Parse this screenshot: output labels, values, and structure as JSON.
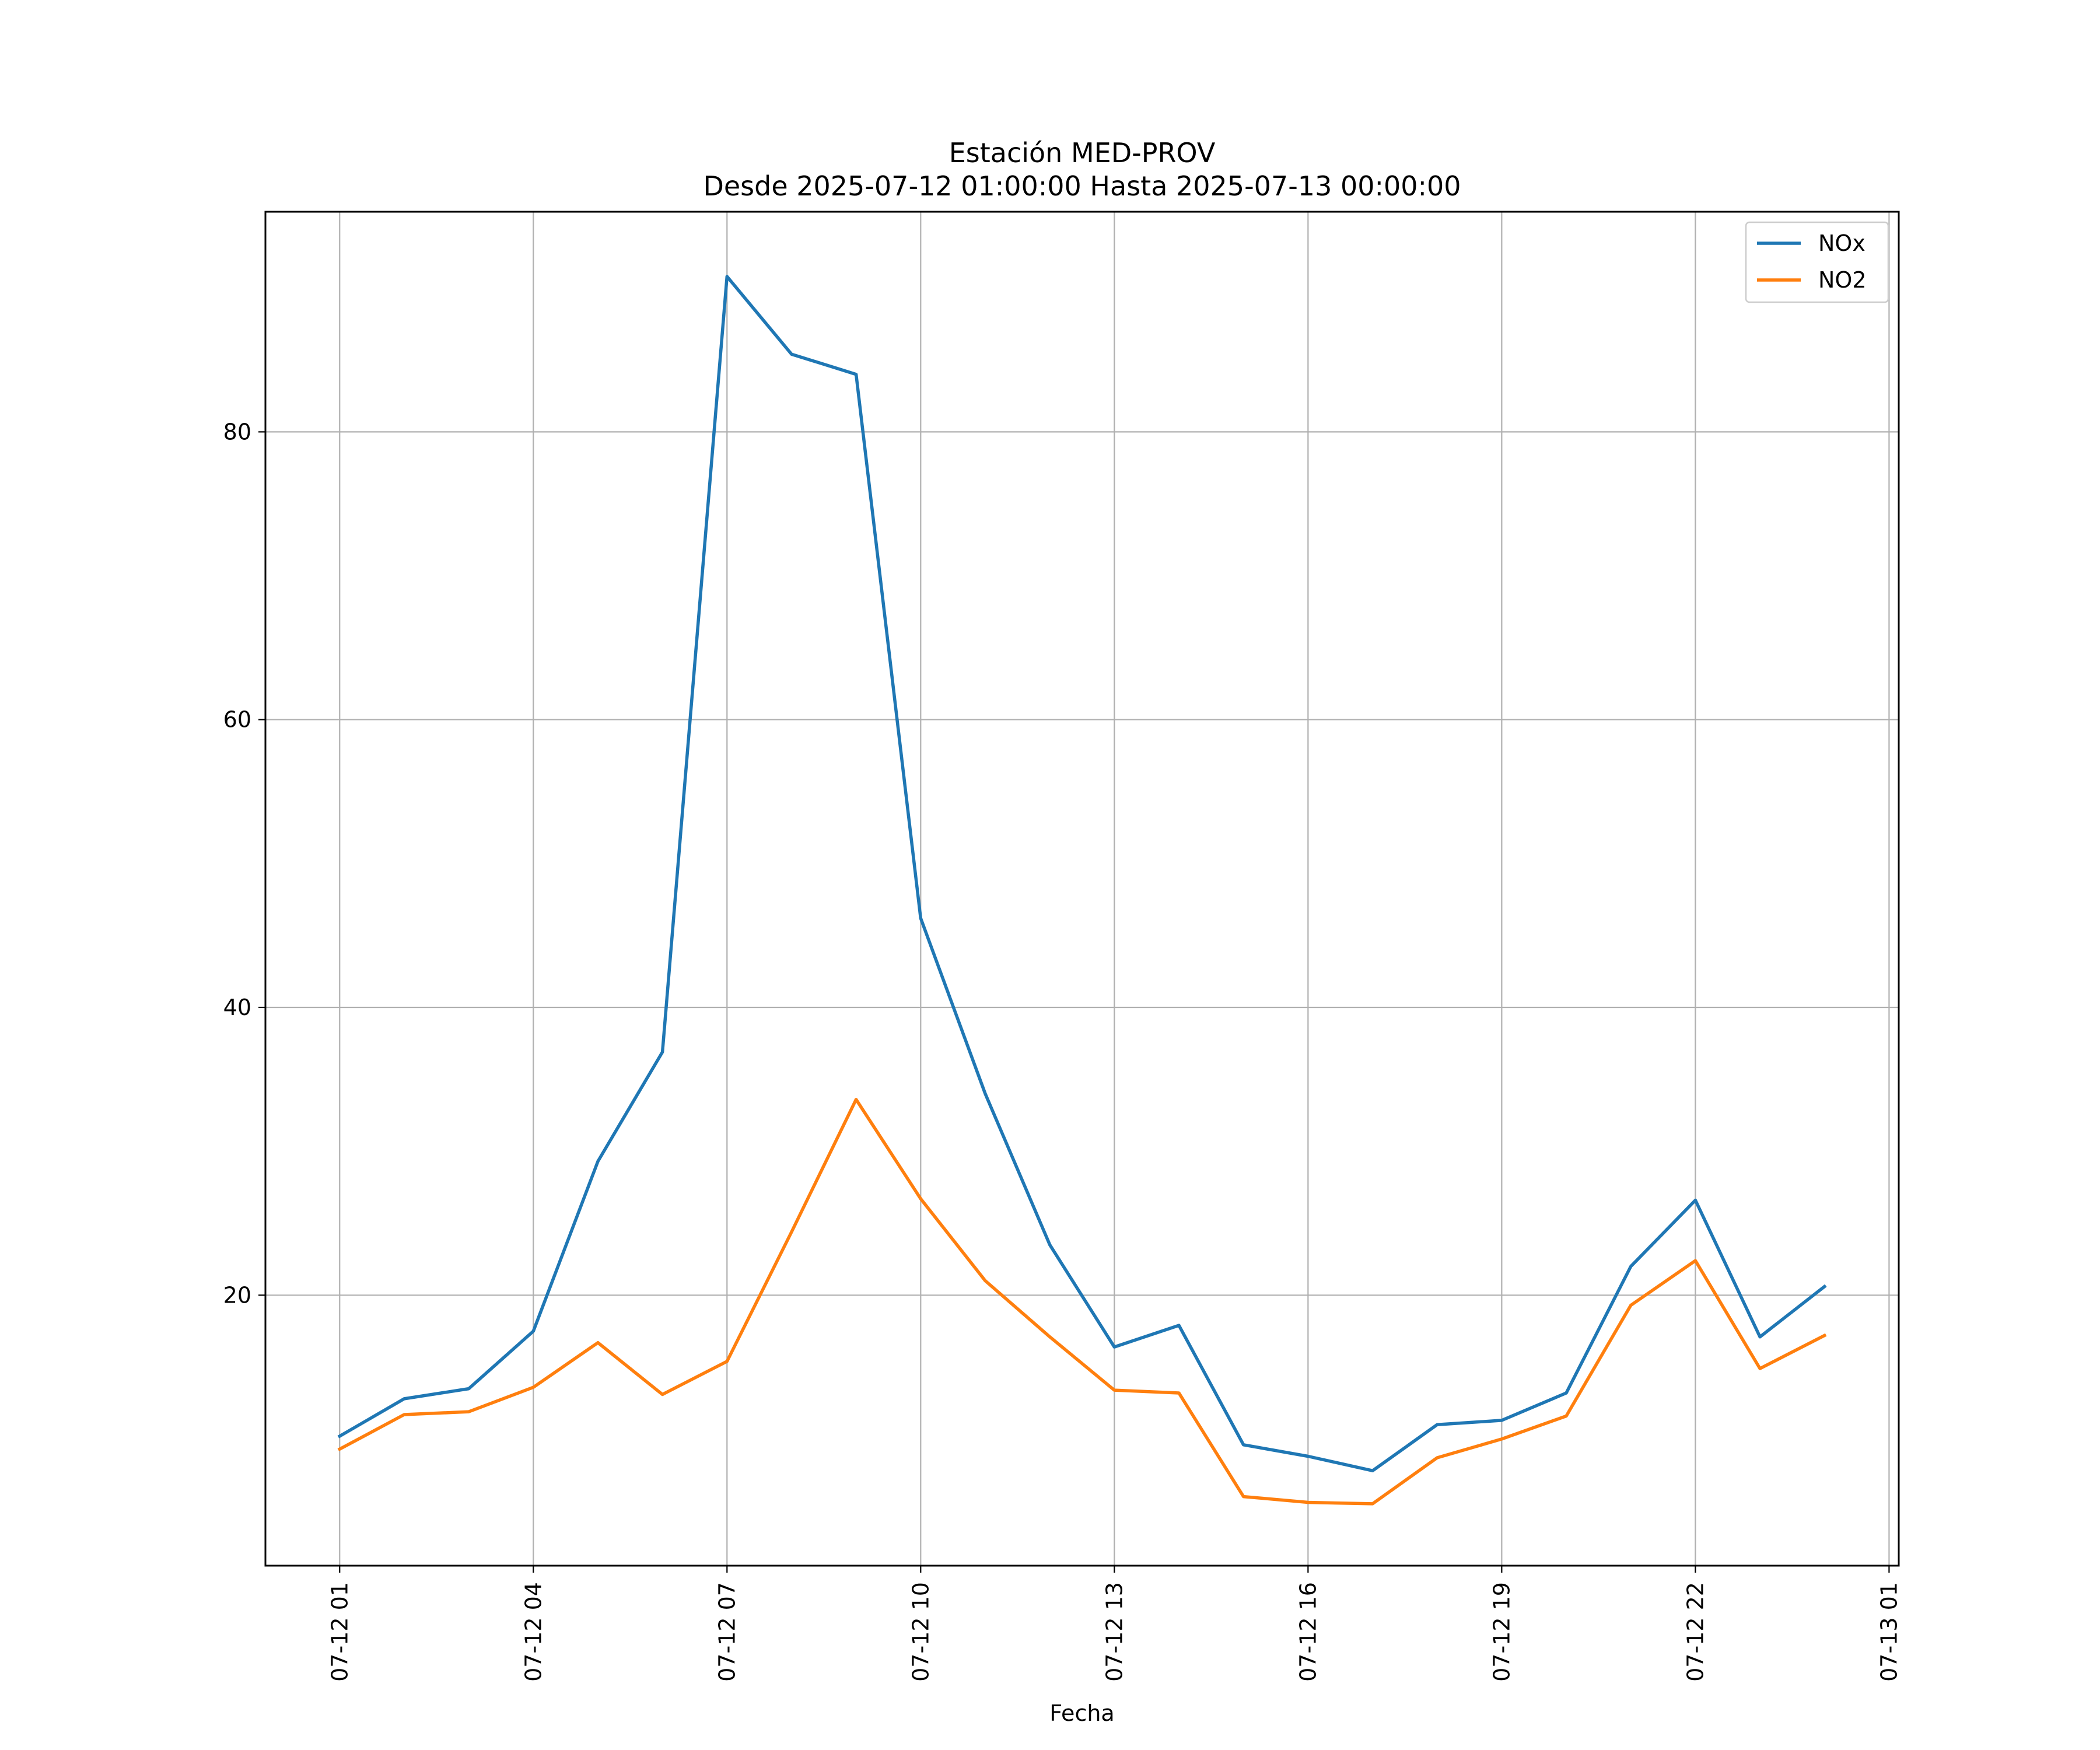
{
  "chart_data": {
    "type": "line",
    "title": "Estación MED-PROV",
    "subtitle": "Desde 2025-07-12 01:00:00 Hasta 2025-07-13 00:00:00",
    "xlabel": "Fecha",
    "ylabel": "",
    "x": [
      "07-12 01",
      "07-12 02",
      "07-12 03",
      "07-12 04",
      "07-12 05",
      "07-12 06",
      "07-12 07",
      "07-12 08",
      "07-12 09",
      "07-12 10",
      "07-12 11",
      "07-12 12",
      "07-12 13",
      "07-12 14",
      "07-12 15",
      "07-12 16",
      "07-12 17",
      "07-12 18",
      "07-12 19",
      "07-12 20",
      "07-12 21",
      "07-12 22",
      "07-12 23",
      "07-13 00"
    ],
    "x_ticks": [
      "07-12 01",
      "07-12 04",
      "07-12 07",
      "07-12 10",
      "07-12 13",
      "07-12 16",
      "07-12 19",
      "07-12 22",
      "07-13 01"
    ],
    "y_ticks": [
      20,
      40,
      60,
      80
    ],
    "ylim": [
      1.2,
      95.3
    ],
    "xlim_hours": [
      -1.15,
      24.15
    ],
    "grid": true,
    "legend_position": "top-right",
    "series": [
      {
        "name": "NOx",
        "color": "#1f77b4",
        "values": [
          10.2,
          12.8,
          13.5,
          17.5,
          29.3,
          36.9,
          90.8,
          85.4,
          84.0,
          46.2,
          34.0,
          23.5,
          16.4,
          17.9,
          9.6,
          8.8,
          7.8,
          11.0,
          11.3,
          13.2,
          22.0,
          26.6,
          17.1,
          20.6
        ]
      },
      {
        "name": "NO2",
        "color": "#ff7f0e",
        "values": [
          9.3,
          11.7,
          11.9,
          13.6,
          16.7,
          13.1,
          15.4,
          24.4,
          33.6,
          26.7,
          21.0,
          17.1,
          13.4,
          13.2,
          6.0,
          5.6,
          5.5,
          8.7,
          10.0,
          11.6,
          19.3,
          22.4,
          14.9,
          17.2
        ]
      }
    ]
  }
}
